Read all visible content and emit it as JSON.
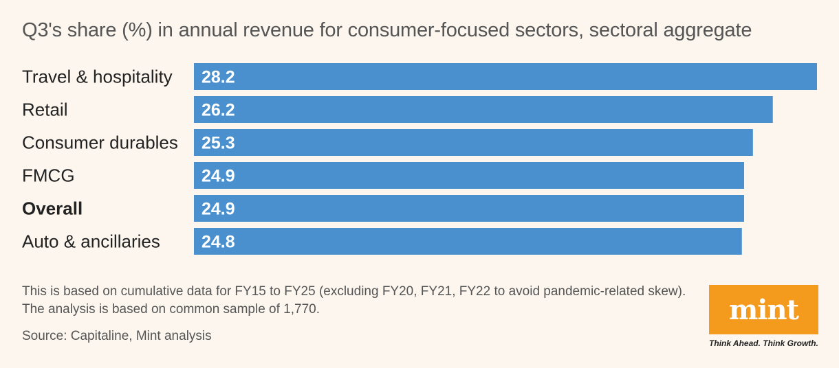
{
  "chart_data": {
    "type": "bar",
    "orientation": "horizontal",
    "title": "Q3's share (%) in annual revenue for consumer-focused sectors, sectoral aggregate",
    "categories": [
      "Travel & hospitality",
      "Retail",
      "Consumer durables",
      "FMCG",
      "Overall",
      "Auto & ancillaries"
    ],
    "values": [
      28.2,
      26.2,
      25.3,
      24.9,
      24.9,
      24.8
    ],
    "value_labels": [
      "28.2",
      "26.2",
      "25.3",
      "24.9",
      "24.9",
      "24.8"
    ],
    "bold_categories": [
      "Overall"
    ],
    "xlim": [
      0,
      28.2
    ],
    "xlabel": "",
    "ylabel": "",
    "grid": false,
    "bar_color": "#4a90cf"
  },
  "footnote": {
    "note": "This is based on cumulative data for FY15 to FY25 (excluding FY20, FY21, FY22 to avoid pandemic-related skew). The analysis is based on common sample of 1,770.",
    "source": "Source: Capitaline, Mint analysis"
  },
  "brand": {
    "logo_text": "mint",
    "tagline": "Think Ahead. Think Growth.",
    "logo_color": "#f49a1d"
  }
}
